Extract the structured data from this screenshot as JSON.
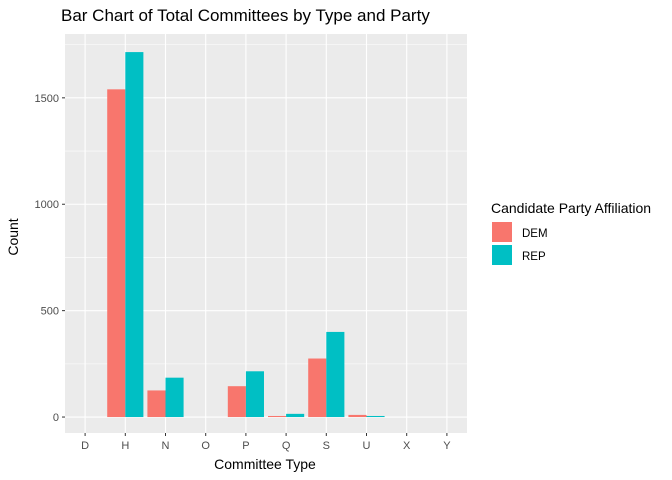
{
  "chart_data": {
    "type": "bar",
    "title": "Bar Chart of Total Committees by Type and Party",
    "xlabel": "Committee Type",
    "ylabel": "Count",
    "categories": [
      "D",
      "H",
      "N",
      "O",
      "P",
      "Q",
      "S",
      "U",
      "X",
      "Y"
    ],
    "series": [
      {
        "name": "DEM",
        "color": "#F8766D",
        "values": [
          0,
          1540,
          125,
          0,
          145,
          5,
          275,
          10,
          0,
          0
        ]
      },
      {
        "name": "REP",
        "color": "#00BFC4",
        "values": [
          0,
          1715,
          185,
          0,
          215,
          15,
          400,
          5,
          0,
          0
        ]
      }
    ],
    "ylim": [
      -75,
      1800
    ],
    "yticks": [
      0,
      500,
      1000,
      1500
    ],
    "grid": true,
    "legend": {
      "title": "Candidate Party Affiliation",
      "position": "right"
    },
    "colors": {
      "panel": "#EBEBEB",
      "grid": "#FFFFFF"
    }
  }
}
